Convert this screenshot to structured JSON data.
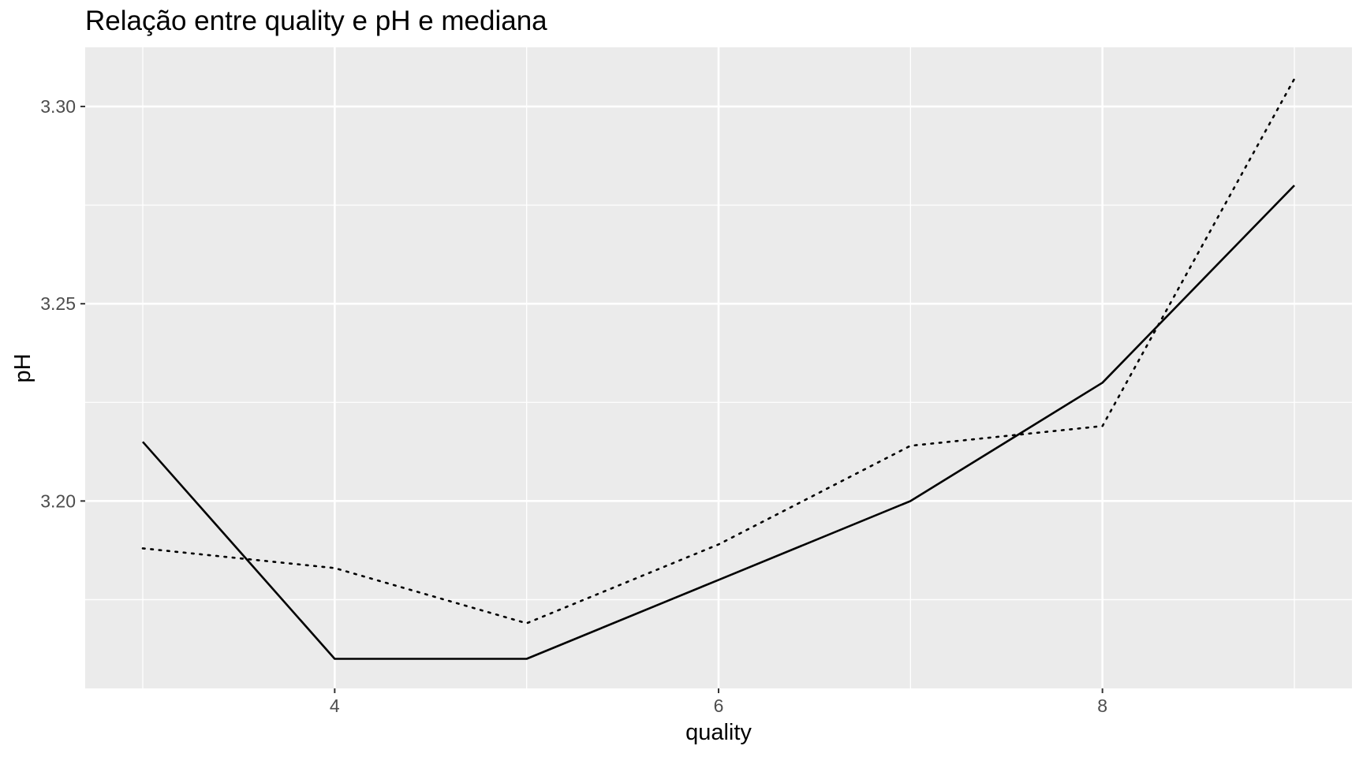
{
  "chart_data": {
    "type": "line",
    "title": "Relação entre quality e pH e mediana",
    "xlabel": "quality",
    "ylabel": "pH",
    "xlim": [
      2.7,
      9.3
    ],
    "ylim": [
      3.1525,
      3.315
    ],
    "x_ticks": [
      4,
      6,
      8
    ],
    "x_tick_labels": [
      "4",
      "6",
      "8"
    ],
    "y_ticks": [
      3.2,
      3.25,
      3.3
    ],
    "y_tick_labels": [
      "3.20",
      "3.25",
      "3.30"
    ],
    "grid": true,
    "legend": "none",
    "background": "#ebebeb",
    "gridline_color": "#ffffff",
    "series": [
      {
        "style": "solid",
        "color": "#000000",
        "x": [
          3,
          4,
          5,
          6,
          7,
          8,
          9
        ],
        "y": [
          3.215,
          3.16,
          3.16,
          3.18,
          3.2,
          3.23,
          3.28
        ]
      },
      {
        "style": "dotted",
        "color": "#000000",
        "x": [
          3,
          4,
          5,
          6,
          7,
          8,
          9
        ],
        "y": [
          3.188,
          3.183,
          3.169,
          3.189,
          3.214,
          3.219,
          3.307
        ]
      }
    ]
  }
}
